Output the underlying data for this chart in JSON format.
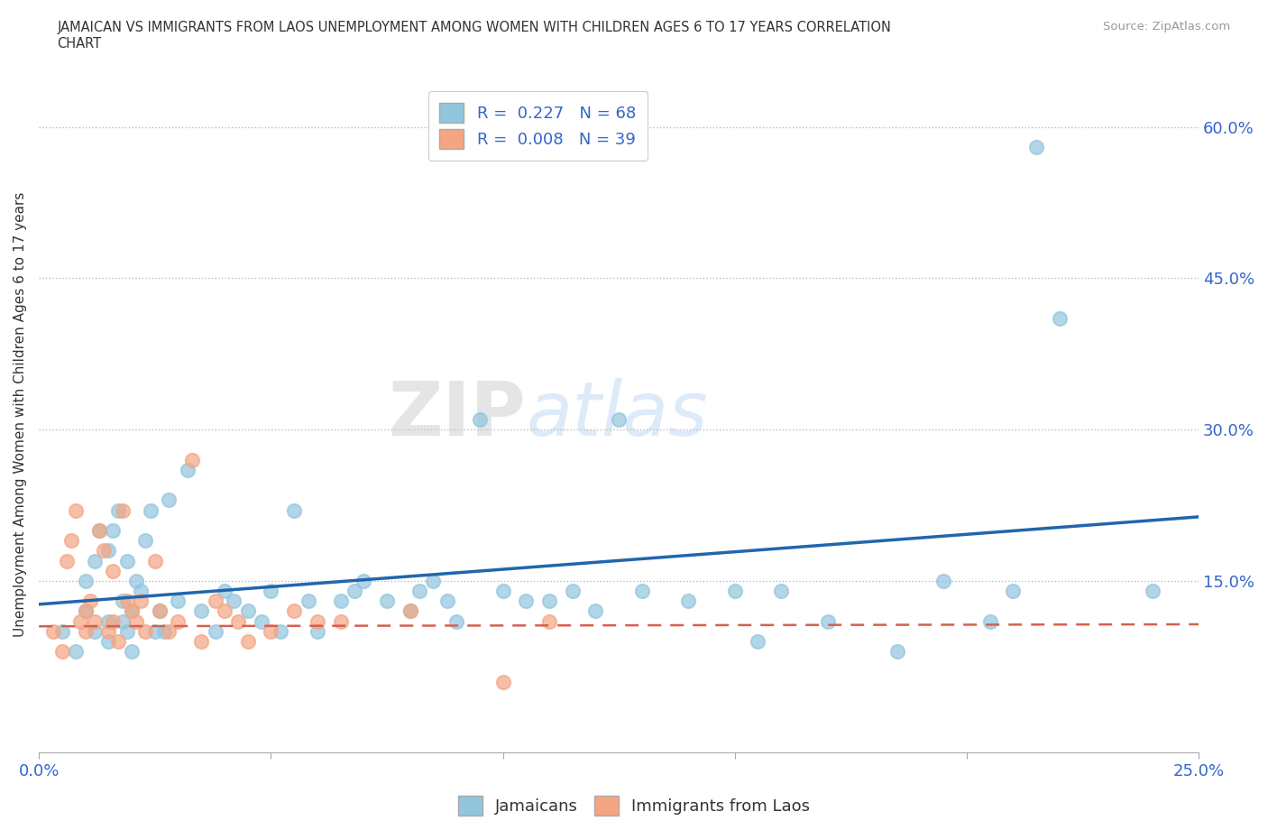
{
  "title": "JAMAICAN VS IMMIGRANTS FROM LAOS UNEMPLOYMENT AMONG WOMEN WITH CHILDREN AGES 6 TO 17 YEARS CORRELATION\nCHART",
  "source": "Source: ZipAtlas.com",
  "ylabel": "Unemployment Among Women with Children Ages 6 to 17 years",
  "xlim": [
    0.0,
    0.25
  ],
  "ylim": [
    -0.02,
    0.65
  ],
  "xticks": [
    0.0,
    0.05,
    0.1,
    0.15,
    0.2,
    0.25
  ],
  "xtick_labels": [
    "0.0%",
    "",
    "",
    "",
    "",
    "25.0%"
  ],
  "yticks": [
    0.0,
    0.15,
    0.3,
    0.45,
    0.6
  ],
  "ytick_labels": [
    "",
    "15.0%",
    "30.0%",
    "45.0%",
    "60.0%"
  ],
  "jamaican_color": "#92c5de",
  "laos_color": "#f4a582",
  "trend_jamaican_color": "#2166ac",
  "trend_laos_color": "#d6604d",
  "R_jamaican": 0.227,
  "N_jamaican": 68,
  "R_laos": 0.008,
  "N_laos": 39,
  "background_color": "#ffffff",
  "watermark_part1": "ZIP",
  "watermark_part2": "atlas",
  "jamaican_x": [
    0.005,
    0.008,
    0.01,
    0.01,
    0.012,
    0.012,
    0.013,
    0.015,
    0.015,
    0.015,
    0.016,
    0.017,
    0.018,
    0.018,
    0.019,
    0.019,
    0.02,
    0.02,
    0.021,
    0.022,
    0.023,
    0.024,
    0.025,
    0.026,
    0.027,
    0.028,
    0.03,
    0.032,
    0.035,
    0.038,
    0.04,
    0.042,
    0.045,
    0.048,
    0.05,
    0.052,
    0.055,
    0.058,
    0.06,
    0.065,
    0.068,
    0.07,
    0.075,
    0.08,
    0.082,
    0.085,
    0.088,
    0.09,
    0.095,
    0.1,
    0.105,
    0.11,
    0.115,
    0.12,
    0.125,
    0.13,
    0.14,
    0.15,
    0.155,
    0.16,
    0.17,
    0.185,
    0.195,
    0.205,
    0.21,
    0.215,
    0.22,
    0.24
  ],
  "jamaican_y": [
    0.1,
    0.08,
    0.12,
    0.15,
    0.1,
    0.17,
    0.2,
    0.09,
    0.11,
    0.18,
    0.2,
    0.22,
    0.11,
    0.13,
    0.1,
    0.17,
    0.08,
    0.12,
    0.15,
    0.14,
    0.19,
    0.22,
    0.1,
    0.12,
    0.1,
    0.23,
    0.13,
    0.26,
    0.12,
    0.1,
    0.14,
    0.13,
    0.12,
    0.11,
    0.14,
    0.1,
    0.22,
    0.13,
    0.1,
    0.13,
    0.14,
    0.15,
    0.13,
    0.12,
    0.14,
    0.15,
    0.13,
    0.11,
    0.31,
    0.14,
    0.13,
    0.13,
    0.14,
    0.12,
    0.31,
    0.14,
    0.13,
    0.14,
    0.09,
    0.14,
    0.11,
    0.08,
    0.15,
    0.11,
    0.14,
    0.58,
    0.41,
    0.14
  ],
  "laos_x": [
    0.003,
    0.005,
    0.006,
    0.007,
    0.008,
    0.009,
    0.01,
    0.01,
    0.011,
    0.012,
    0.013,
    0.014,
    0.015,
    0.016,
    0.016,
    0.017,
    0.018,
    0.019,
    0.02,
    0.021,
    0.022,
    0.023,
    0.025,
    0.026,
    0.028,
    0.03,
    0.033,
    0.035,
    0.038,
    0.04,
    0.043,
    0.045,
    0.05,
    0.055,
    0.06,
    0.065,
    0.08,
    0.1,
    0.11
  ],
  "laos_y": [
    0.1,
    0.08,
    0.17,
    0.19,
    0.22,
    0.11,
    0.12,
    0.1,
    0.13,
    0.11,
    0.2,
    0.18,
    0.1,
    0.11,
    0.16,
    0.09,
    0.22,
    0.13,
    0.12,
    0.11,
    0.13,
    0.1,
    0.17,
    0.12,
    0.1,
    0.11,
    0.27,
    0.09,
    0.13,
    0.12,
    0.11,
    0.09,
    0.1,
    0.12,
    0.11,
    0.11,
    0.12,
    0.05,
    0.11
  ]
}
